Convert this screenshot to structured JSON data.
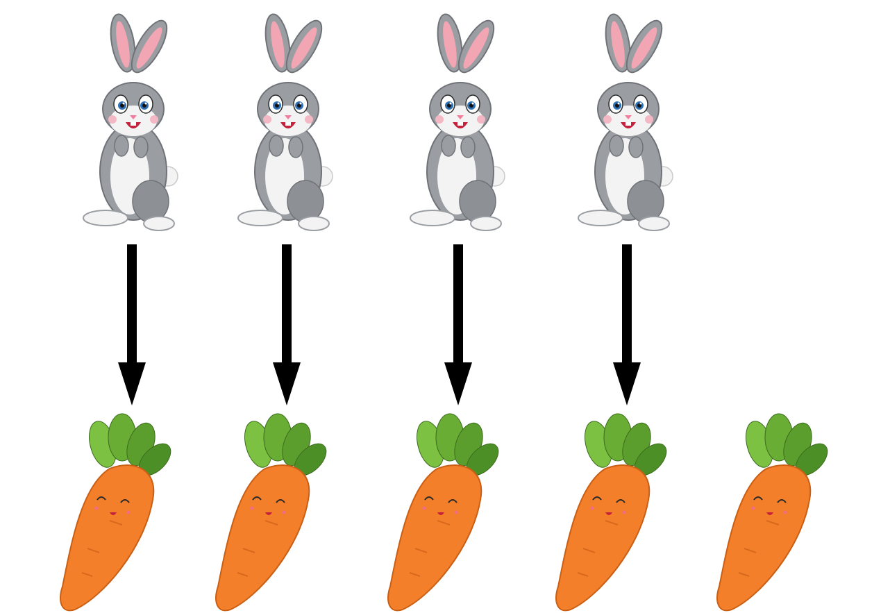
{
  "diagram": {
    "rows": {
      "bunnies": {
        "count": 4
      },
      "carrots": {
        "count": 5
      }
    },
    "arrows": [
      {
        "from": "bunny-1",
        "to": "carrot-1"
      },
      {
        "from": "bunny-2",
        "to": "carrot-2"
      },
      {
        "from": "bunny-3",
        "to": "carrot-3"
      },
      {
        "from": "bunny-4",
        "to": "carrot-4"
      }
    ],
    "colors": {
      "bunny_fur": "#9a9ea3",
      "bunny_fur_dark": "#6f7378",
      "bunny_belly": "#f3f3f3",
      "ear_inner": "#f2a5b3",
      "arrow": "#000000",
      "carrot_body": "#f37f2a",
      "carrot_leaf_light": "#7cc142",
      "carrot_leaf_dark": "#4d8f27",
      "cheek": "#f06c8b"
    },
    "icons": [
      "bunny-icon",
      "down-arrow-icon",
      "carrot-icon"
    ]
  }
}
